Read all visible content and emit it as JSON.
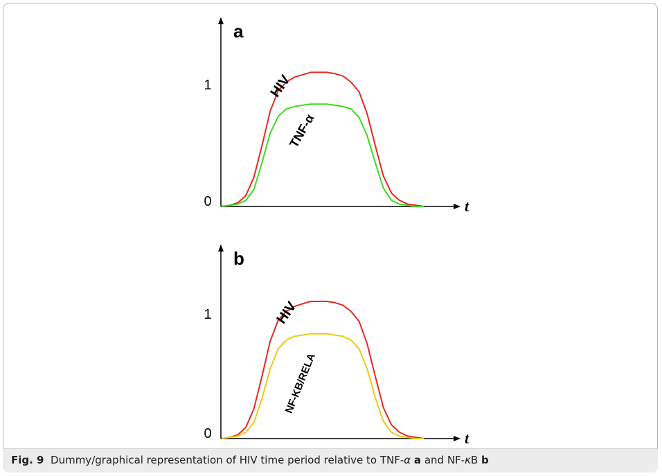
{
  "caption": {
    "label": "Fig. 9",
    "text_before": "Dummy/graphical representation of HIV time period relative to TNF-",
    "alpha": "α",
    "panel_a": "a",
    "text_mid": "and NF-",
    "kappa": "κ",
    "text_b": "B",
    "panel_b": "b"
  },
  "chart_data": [
    {
      "type": "line",
      "panel": "a",
      "xlabel": "t",
      "yticks": [
        "0",
        "1"
      ],
      "ylim": [
        0,
        1.5
      ],
      "grid": false,
      "x": [
        0,
        0.04,
        0.08,
        0.12,
        0.16,
        0.2,
        0.24,
        0.28,
        0.32,
        0.36,
        0.4,
        0.44,
        0.48,
        0.5,
        0.52,
        0.56,
        0.6,
        0.64,
        0.68,
        0.72,
        0.76,
        0.8,
        0.84,
        0.88,
        0.92,
        0.96,
        1.0
      ],
      "series": [
        {
          "name": "HIV",
          "color": "#e8281e",
          "values": [
            0,
            0.01,
            0.03,
            0.09,
            0.24,
            0.5,
            0.78,
            0.95,
            1.02,
            1.06,
            1.08,
            1.1,
            1.1,
            1.1,
            1.1,
            1.09,
            1.07,
            1.02,
            0.94,
            0.76,
            0.5,
            0.25,
            0.11,
            0.05,
            0.02,
            0.01,
            0
          ],
          "label_angle": -55,
          "label_font_size": 20
        },
        {
          "name": "TNF-α",
          "color": "#3cdc1e",
          "values": [
            0,
            0.01,
            0.02,
            0.05,
            0.14,
            0.36,
            0.6,
            0.74,
            0.8,
            0.82,
            0.83,
            0.84,
            0.84,
            0.84,
            0.84,
            0.83,
            0.82,
            0.8,
            0.73,
            0.58,
            0.36,
            0.15,
            0.05,
            0.02,
            0.01,
            0,
            0
          ],
          "label_angle": -60,
          "label_font_size": 18
        }
      ]
    },
    {
      "type": "line",
      "panel": "b",
      "xlabel": "t",
      "yticks": [
        "0",
        "1"
      ],
      "ylim": [
        0,
        1.5
      ],
      "grid": false,
      "x": [
        0,
        0.04,
        0.08,
        0.12,
        0.16,
        0.2,
        0.24,
        0.28,
        0.32,
        0.36,
        0.4,
        0.44,
        0.48,
        0.5,
        0.52,
        0.56,
        0.6,
        0.64,
        0.68,
        0.72,
        0.76,
        0.8,
        0.84,
        0.88,
        0.92,
        0.96,
        1.0
      ],
      "series": [
        {
          "name": "HIV",
          "color": "#e8281e",
          "values": [
            0,
            0.01,
            0.03,
            0.09,
            0.24,
            0.5,
            0.78,
            0.95,
            1.02,
            1.06,
            1.08,
            1.1,
            1.1,
            1.1,
            1.1,
            1.09,
            1.07,
            1.02,
            0.94,
            0.76,
            0.5,
            0.25,
            0.11,
            0.05,
            0.02,
            0.01,
            0
          ],
          "label_angle": -55,
          "label_font_size": 20
        },
        {
          "name": "NF-KB/RELA",
          "color": "#f0c814",
          "values": [
            0,
            0.01,
            0.02,
            0.05,
            0.13,
            0.32,
            0.56,
            0.72,
            0.79,
            0.82,
            0.83,
            0.84,
            0.84,
            0.84,
            0.84,
            0.83,
            0.82,
            0.79,
            0.72,
            0.56,
            0.33,
            0.14,
            0.05,
            0.02,
            0.01,
            0,
            0
          ],
          "label_angle": -68,
          "label_font_size": 15
        }
      ]
    }
  ]
}
